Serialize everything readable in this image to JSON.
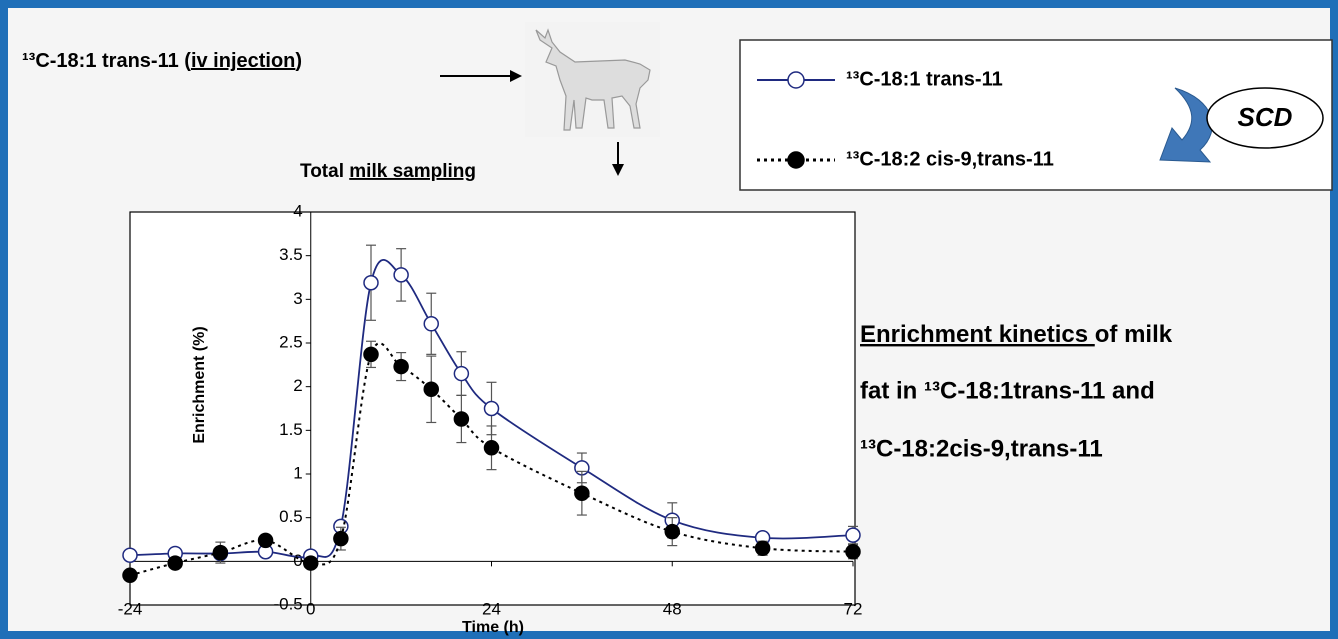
{
  "header": {
    "prefix": "¹³C-18:1 trans-11 (",
    "underlined": "iv injection",
    "suffix": ")"
  },
  "sampling": {
    "prefix": "Total ",
    "underlined": "milk sampling"
  },
  "enzyme": "SCD",
  "description": {
    "underlined": "Enrichment kinetics ",
    "lines": [
      "of milk",
      "fat in  ¹³C-18:1trans-11 and",
      "¹³C-18:2cis-9,trans-11"
    ]
  },
  "chart_data": {
    "type": "line",
    "x_label": "Time (h)",
    "y_label": "Enrichment (%)",
    "x": [
      -24,
      -18,
      -12,
      -6,
      0,
      4,
      8,
      12,
      16,
      20,
      24,
      36,
      48,
      60,
      72
    ],
    "series": [
      {
        "name": "¹³C-18:1 trans-11",
        "color": "#1f2a80",
        "marker": "open",
        "dash": "solid",
        "values": [
          0.07,
          0.09,
          0.09,
          0.11,
          0.06,
          0.4,
          3.19,
          3.28,
          2.72,
          2.15,
          1.75,
          1.07,
          0.47,
          0.27,
          0.3
        ],
        "errors": [
          0.02,
          0.02,
          0.03,
          0.02,
          0.02,
          0.05,
          0.43,
          0.3,
          0.35,
          0.25,
          0.3,
          0.17,
          0.2,
          0.05,
          0.1
        ]
      },
      {
        "name": "¹³C-18:2 cis-9,trans-11",
        "color": "#000000",
        "marker": "filled",
        "dash": "dotted",
        "values": [
          -0.16,
          -0.02,
          0.1,
          0.24,
          -0.02,
          0.26,
          2.37,
          2.23,
          1.97,
          1.63,
          1.3,
          0.78,
          0.34,
          0.15,
          0.11
        ],
        "errors": [
          0.05,
          0.05,
          0.12,
          0.05,
          0.05,
          0.13,
          0.15,
          0.16,
          0.38,
          0.27,
          0.25,
          0.25,
          0.16,
          0.08,
          0.08
        ]
      }
    ],
    "xlim": [
      -24,
      72
    ],
    "xticks": [
      -24,
      0,
      24,
      48,
      72
    ],
    "ylim": [
      -0.5,
      4
    ],
    "yticks": [
      -0.5,
      0,
      0.5,
      1,
      1.5,
      2,
      2.5,
      3,
      3.5,
      4
    ]
  }
}
